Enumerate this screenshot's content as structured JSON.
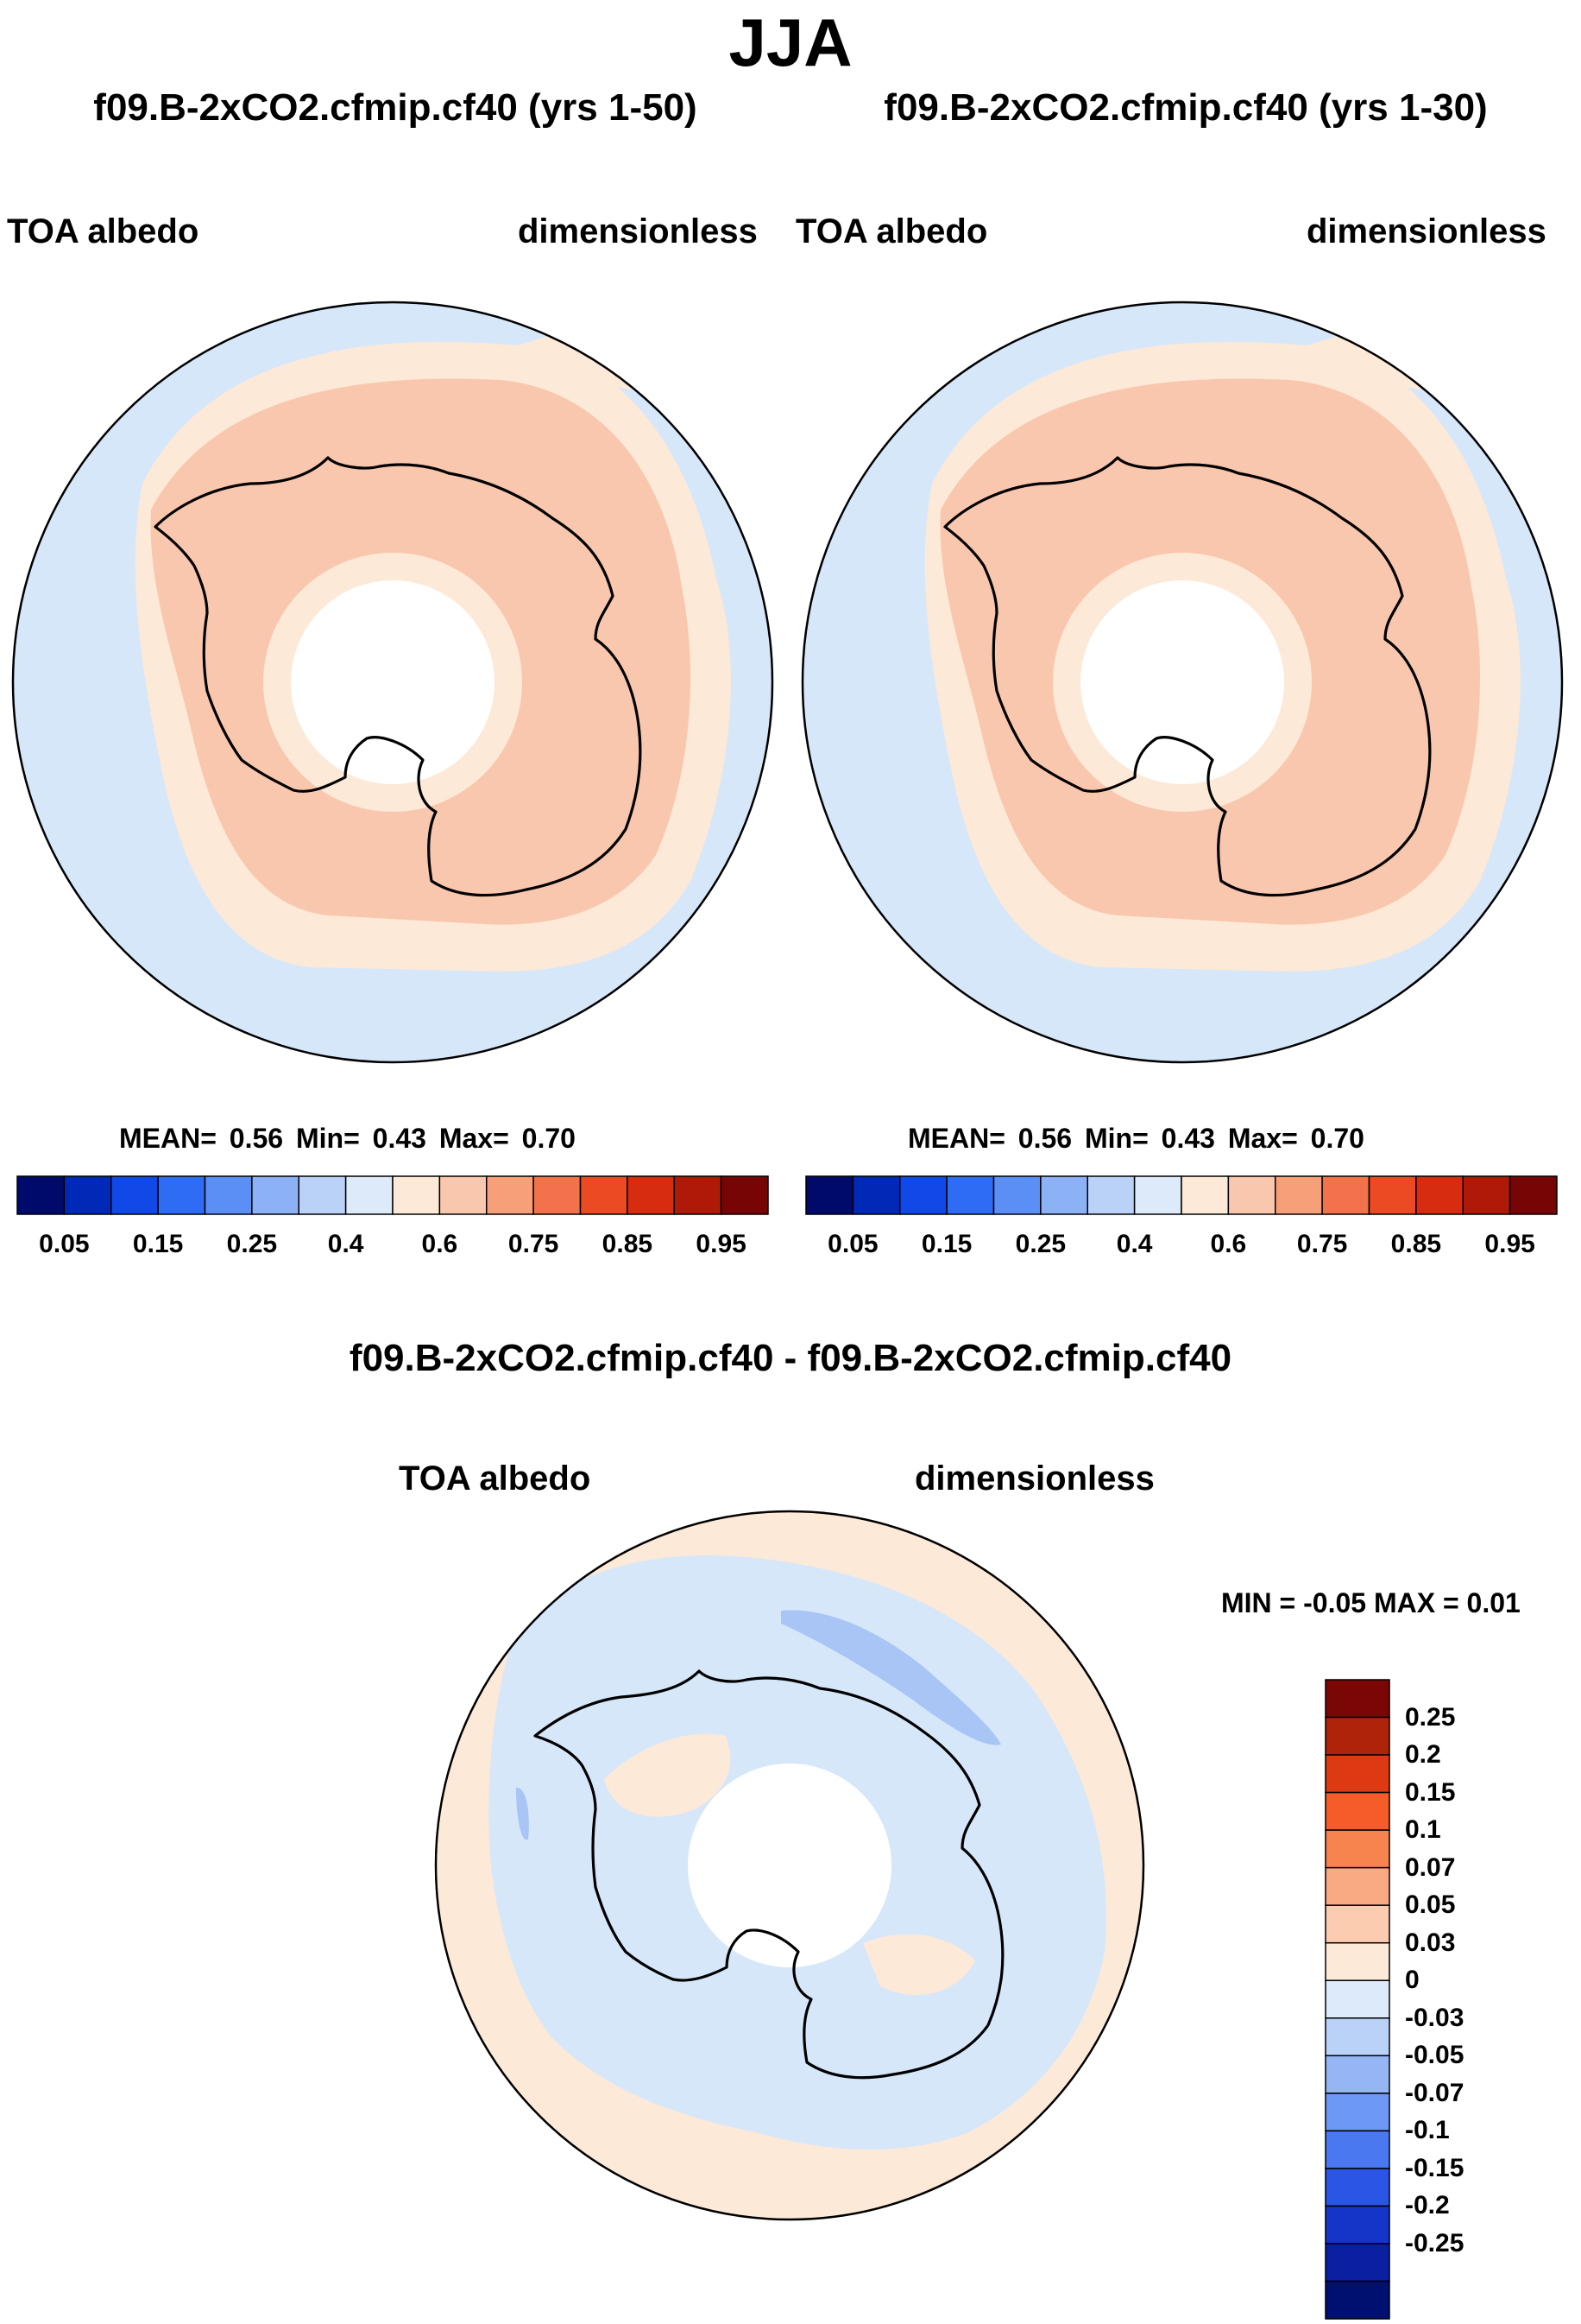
{
  "figure": {
    "season": "JJA",
    "panels": [
      {
        "case_title": "f09.B-2xCO2.cfmip.cf40 (yrs 1-50)",
        "variable": "TOA albedo",
        "units": "dimensionless",
        "stats_text": "MEAN=   0.56  Min=   0.43  Max=   0.70",
        "mean": 0.56,
        "min": 0.43,
        "max": 0.7
      },
      {
        "case_title": "f09.B-2xCO2.cfmip.cf40 (yrs 1-30)",
        "variable": "TOA albedo",
        "units": "dimensionless",
        "stats_text": "MEAN=   0.56  Min=   0.43  Max=   0.70",
        "mean": 0.56,
        "min": 0.43,
        "max": 0.7
      }
    ],
    "difference": {
      "title": "f09.B-2xCO2.cfmip.cf40 - f09.B-2xCO2.cfmip.cf40",
      "variable": "TOA albedo",
      "units": "dimensionless",
      "minmax_text": "MIN =  -0.05 MAX =   0.01",
      "min": -0.05,
      "max": 0.01
    }
  },
  "colorbar_main": {
    "colors": [
      "#000a6b",
      "#0029b8",
      "#1149e8",
      "#2e6cf5",
      "#5b8ff5",
      "#8db1f5",
      "#bad2f8",
      "#dceaf9",
      "#fde9d7",
      "#f9c7ad",
      "#f69f79",
      "#f2734b",
      "#eb4a23",
      "#d72c10",
      "#ae1a07",
      "#780505"
    ],
    "labels": [
      "0.05",
      "0.15",
      "0.25",
      "0.4",
      "0.6",
      "0.75",
      "0.85",
      "0.95"
    ]
  },
  "colorbar_diff": {
    "colors": [
      "#7b0606",
      "#b0230b",
      "#dd3a14",
      "#f65b2a",
      "#f7844f",
      "#f9aa83",
      "#fbccb0",
      "#fde9d7",
      "#dceaf9",
      "#bad2f8",
      "#95b5f5",
      "#6e98f5",
      "#4a78f0",
      "#2b55e5",
      "#1435c8",
      "#0a1fa2",
      "#001070"
    ],
    "labels": [
      "0.25",
      "0.2",
      "0.15",
      "0.1",
      "0.07",
      "0.05",
      "0.03",
      "0",
      "-0.03",
      "-0.05",
      "-0.07",
      "-0.1",
      "-0.15",
      "-0.2",
      "-0.25"
    ]
  },
  "map_fills": {
    "ocean": "#d6e7fa",
    "outer_ring": "#fde9d7",
    "inner_zone": "#f9c7ad",
    "diff_background": "#fde9d7",
    "diff_negative": "#d6e7fa",
    "diff_strong_negative": "#a8c5f5",
    "pole_hole": "#ffffff"
  }
}
